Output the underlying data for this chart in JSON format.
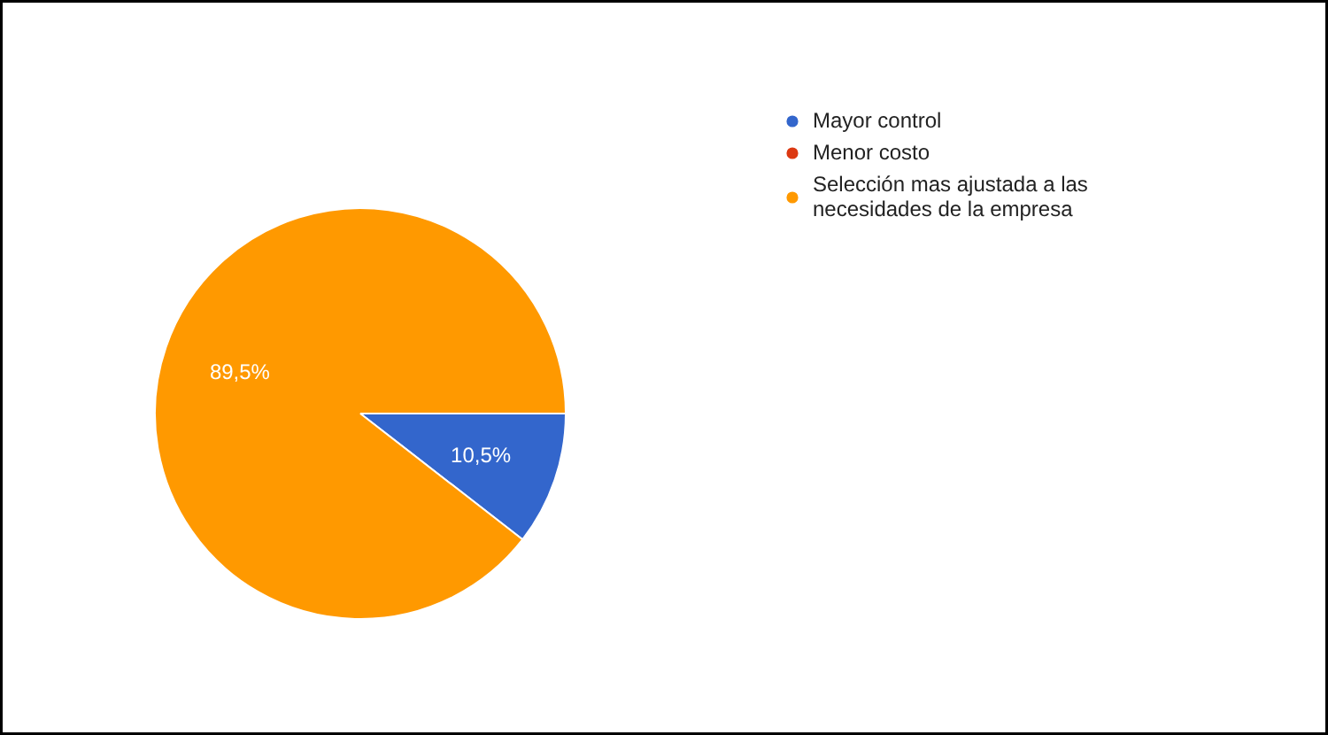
{
  "chart_data": {
    "type": "pie",
    "categories": [
      "Mayor control",
      "Menor costo",
      "Selección mas ajustada a las necesidades de la empresa"
    ],
    "values": [
      10.5,
      0,
      89.5
    ],
    "colors": [
      "#3366cc",
      "#dc3912",
      "#ff9900"
    ],
    "value_labels": [
      "10,5%",
      null,
      "89,5%"
    ],
    "legend": "top right"
  }
}
